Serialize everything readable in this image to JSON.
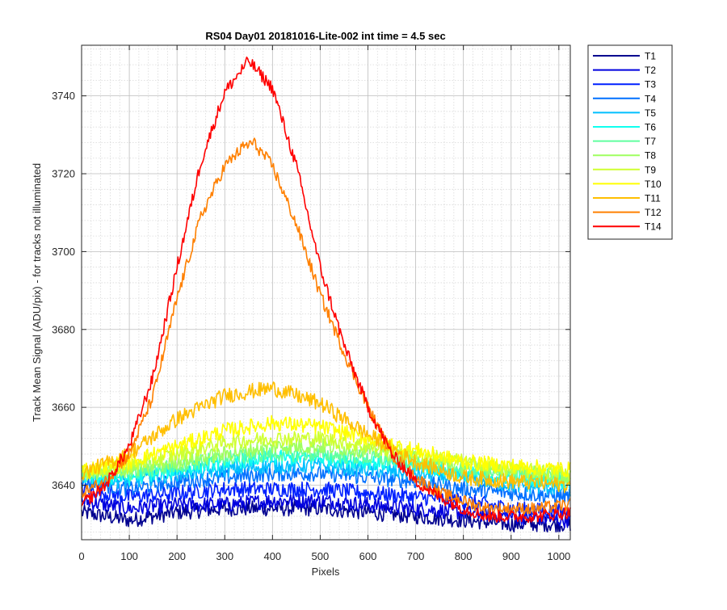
{
  "chart_data": {
    "type": "line",
    "title": "RS04 Day01 20181016-Lite-002 int time = 4.5 sec",
    "xlabel": "Pixels",
    "ylabel": "Track Mean Signal (ADU/pix) - for tracks not illuminated",
    "xlim": [
      0,
      1024
    ],
    "ylim": [
      3626,
      3753
    ],
    "xticks": [
      0,
      100,
      200,
      300,
      400,
      500,
      600,
      700,
      800,
      900,
      1000
    ],
    "yticks": [
      3640,
      3660,
      3680,
      3700,
      3720,
      3740
    ],
    "grid": "major and minor",
    "legend_position": "outside-right",
    "series": [
      {
        "name": "T1",
        "color": "#00008F",
        "points": [
          [
            0,
            3633
          ],
          [
            100,
            3631
          ],
          [
            200,
            3633
          ],
          [
            300,
            3634
          ],
          [
            400,
            3634
          ],
          [
            500,
            3634
          ],
          [
            600,
            3633
          ],
          [
            700,
            3632
          ],
          [
            800,
            3631
          ],
          [
            900,
            3630
          ],
          [
            1024,
            3630
          ]
        ]
      },
      {
        "name": "T2",
        "color": "#0000DF",
        "points": [
          [
            0,
            3636
          ],
          [
            100,
            3634
          ],
          [
            200,
            3635
          ],
          [
            300,
            3635
          ],
          [
            400,
            3636
          ],
          [
            500,
            3636
          ],
          [
            600,
            3635
          ],
          [
            700,
            3634
          ],
          [
            800,
            3633
          ],
          [
            900,
            3632
          ],
          [
            1024,
            3631
          ]
        ]
      },
      {
        "name": "T3",
        "color": "#0020FF",
        "points": [
          [
            0,
            3639
          ],
          [
            100,
            3637
          ],
          [
            200,
            3638
          ],
          [
            300,
            3639
          ],
          [
            400,
            3639
          ],
          [
            500,
            3639
          ],
          [
            600,
            3638
          ],
          [
            700,
            3637
          ],
          [
            800,
            3636
          ],
          [
            900,
            3634
          ],
          [
            1024,
            3633
          ]
        ]
      },
      {
        "name": "T4",
        "color": "#0070FF",
        "points": [
          [
            0,
            3641
          ],
          [
            100,
            3639
          ],
          [
            200,
            3641
          ],
          [
            300,
            3642
          ],
          [
            400,
            3643
          ],
          [
            500,
            3643
          ],
          [
            600,
            3642
          ],
          [
            700,
            3641
          ],
          [
            800,
            3639
          ],
          [
            900,
            3638
          ],
          [
            1024,
            3637
          ]
        ]
      },
      {
        "name": "T5",
        "color": "#00BFFF",
        "points": [
          [
            0,
            3642
          ],
          [
            100,
            3641
          ],
          [
            200,
            3643
          ],
          [
            300,
            3644
          ],
          [
            400,
            3645
          ],
          [
            500,
            3645
          ],
          [
            600,
            3644
          ],
          [
            700,
            3643
          ],
          [
            800,
            3642
          ],
          [
            900,
            3640
          ],
          [
            1024,
            3639
          ]
        ]
      },
      {
        "name": "T6",
        "color": "#10FFEF",
        "points": [
          [
            0,
            3642
          ],
          [
            100,
            3642
          ],
          [
            200,
            3644
          ],
          [
            300,
            3646
          ],
          [
            400,
            3647
          ],
          [
            500,
            3647
          ],
          [
            600,
            3646
          ],
          [
            700,
            3645
          ],
          [
            800,
            3643
          ],
          [
            900,
            3642
          ],
          [
            1024,
            3641
          ]
        ]
      },
      {
        "name": "T7",
        "color": "#60FF9F",
        "points": [
          [
            0,
            3643
          ],
          [
            100,
            3643
          ],
          [
            200,
            3645
          ],
          [
            300,
            3647
          ],
          [
            400,
            3648
          ],
          [
            500,
            3648
          ],
          [
            600,
            3647
          ],
          [
            700,
            3646
          ],
          [
            800,
            3644
          ],
          [
            900,
            3643
          ],
          [
            1024,
            3642
          ]
        ]
      },
      {
        "name": "T8",
        "color": "#9FFF60",
        "points": [
          [
            0,
            3643
          ],
          [
            100,
            3644
          ],
          [
            200,
            3646
          ],
          [
            300,
            3648
          ],
          [
            400,
            3650
          ],
          [
            500,
            3650
          ],
          [
            600,
            3649
          ],
          [
            700,
            3647
          ],
          [
            800,
            3645
          ],
          [
            900,
            3644
          ],
          [
            1024,
            3642
          ]
        ]
      },
      {
        "name": "T9",
        "color": "#CFFF30",
        "points": [
          [
            0,
            3643
          ],
          [
            100,
            3645
          ],
          [
            200,
            3648
          ],
          [
            300,
            3651
          ],
          [
            400,
            3652
          ],
          [
            500,
            3652
          ],
          [
            600,
            3650
          ],
          [
            700,
            3648
          ],
          [
            800,
            3646
          ],
          [
            900,
            3644
          ],
          [
            1024,
            3643
          ]
        ]
      },
      {
        "name": "T10",
        "color": "#FFFF00",
        "points": [
          [
            0,
            3644
          ],
          [
            100,
            3646
          ],
          [
            200,
            3650
          ],
          [
            300,
            3654
          ],
          [
            400,
            3656
          ],
          [
            500,
            3655
          ],
          [
            600,
            3652
          ],
          [
            700,
            3649
          ],
          [
            800,
            3646
          ],
          [
            900,
            3645
          ],
          [
            1024,
            3644
          ]
        ]
      },
      {
        "name": "T11",
        "color": "#FFBF00",
        "points": [
          [
            0,
            3643
          ],
          [
            100,
            3648
          ],
          [
            200,
            3657
          ],
          [
            300,
            3663
          ],
          [
            400,
            3665
          ],
          [
            500,
            3661
          ],
          [
            600,
            3653
          ],
          [
            700,
            3646
          ],
          [
            800,
            3642
          ],
          [
            900,
            3641
          ],
          [
            1024,
            3640
          ]
        ]
      },
      {
        "name": "T12",
        "color": "#FF8000",
        "points": [
          [
            0,
            3638
          ],
          [
            50,
            3641
          ],
          [
            100,
            3648
          ],
          [
            150,
            3663
          ],
          [
            200,
            3688
          ],
          [
            250,
            3709
          ],
          [
            300,
            3722
          ],
          [
            340,
            3727
          ],
          [
            360,
            3728
          ],
          [
            400,
            3722
          ],
          [
            450,
            3707
          ],
          [
            500,
            3689
          ],
          [
            550,
            3674
          ],
          [
            600,
            3660
          ],
          [
            650,
            3648
          ],
          [
            700,
            3642
          ],
          [
            750,
            3638
          ],
          [
            800,
            3636
          ],
          [
            850,
            3634
          ],
          [
            900,
            3634
          ],
          [
            950,
            3634
          ],
          [
            1024,
            3635
          ]
        ]
      },
      {
        "name": "T14",
        "color": "#FF0000",
        "points": [
          [
            0,
            3635
          ],
          [
            50,
            3640
          ],
          [
            100,
            3650
          ],
          [
            150,
            3668
          ],
          [
            200,
            3696
          ],
          [
            250,
            3723
          ],
          [
            300,
            3741
          ],
          [
            350,
            3749
          ],
          [
            400,
            3742
          ],
          [
            450,
            3722
          ],
          [
            500,
            3696
          ],
          [
            550,
            3676
          ],
          [
            600,
            3660
          ],
          [
            650,
            3648
          ],
          [
            700,
            3641
          ],
          [
            750,
            3637
          ],
          [
            800,
            3634
          ],
          [
            850,
            3632
          ],
          [
            900,
            3632
          ],
          [
            950,
            3632
          ],
          [
            1024,
            3633
          ]
        ]
      }
    ]
  }
}
